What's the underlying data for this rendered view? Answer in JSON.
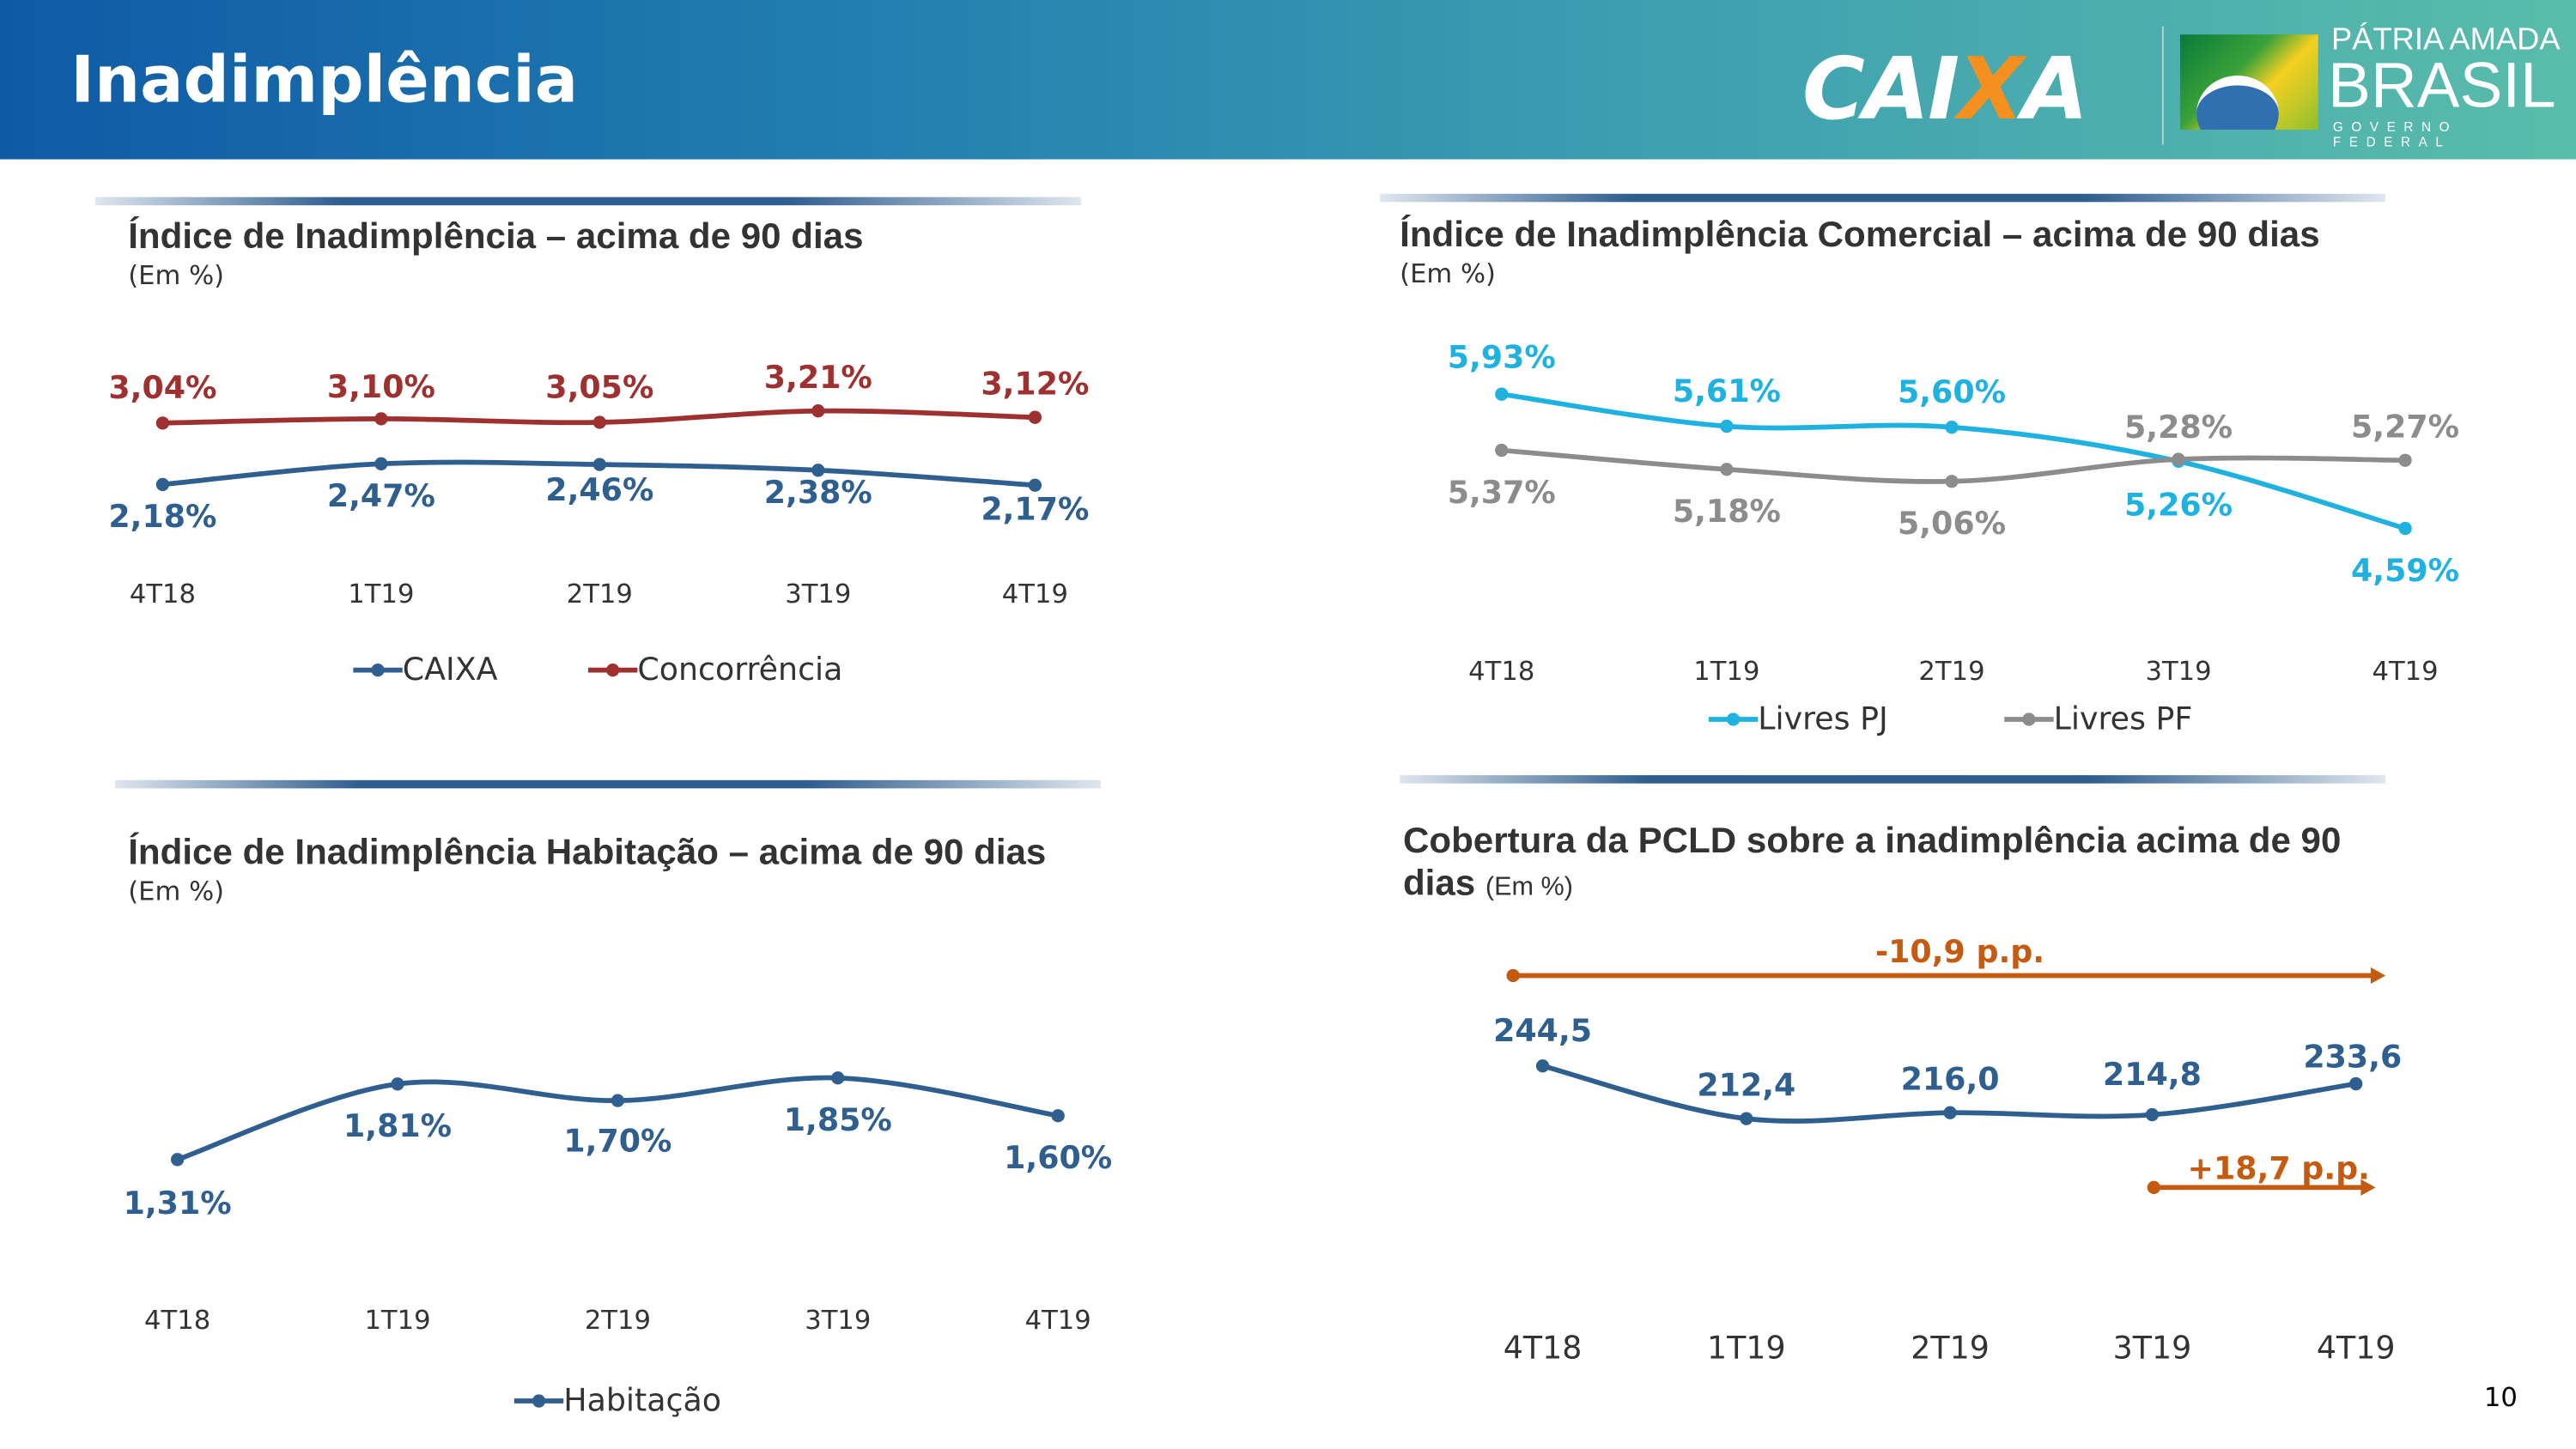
{
  "header": {
    "title": "Inadimplência",
    "logo_caixa": "CAIXA",
    "logo_gov": {
      "line1": "PÁTRIA AMADA",
      "line2": "BRASIL",
      "line3": "GOVERNO FEDERAL"
    }
  },
  "page_number": "10",
  "chart_data": [
    {
      "type": "line",
      "title": "Índice de Inadimplência – acima de 90 dias",
      "subtitle": "(Em %)",
      "categories": [
        "4T18",
        "1T19",
        "2T19",
        "3T19",
        "4T19"
      ],
      "legend": "bottom",
      "series": [
        {
          "name": "CAIXA",
          "color": "#2f5f8f",
          "values": [
            2.18,
            2.47,
            2.46,
            2.38,
            2.17
          ],
          "labels": [
            "2,18%",
            "2,47%",
            "2,46%",
            "2,38%",
            "2,17%"
          ]
        },
        {
          "name": "Concorrência",
          "color": "#9e3030",
          "values": [
            3.04,
            3.1,
            3.05,
            3.21,
            3.12
          ],
          "labels": [
            "3,04%",
            "3,10%",
            "3,05%",
            "3,21%",
            "3,12%"
          ]
        }
      ]
    },
    {
      "type": "line",
      "title": "Índice de Inadimplência Comercial – acima de 90 dias",
      "subtitle": "(Em %)",
      "categories": [
        "4T18",
        "1T19",
        "2T19",
        "3T19",
        "4T19"
      ],
      "legend": "bottom",
      "series": [
        {
          "name": "Livres PJ",
          "color": "#1fb2e0",
          "values": [
            5.93,
            5.61,
            5.6,
            5.26,
            4.59
          ],
          "labels": [
            "5,93%",
            "5,61%",
            "5,60%",
            "5,26%",
            "4,59%"
          ]
        },
        {
          "name": "Livres PF",
          "color": "#8c8c8c",
          "values": [
            5.37,
            5.18,
            5.06,
            5.28,
            5.27
          ],
          "labels": [
            "5,37%",
            "5,18%",
            "5,06%",
            "5,28%",
            "5,27%"
          ]
        }
      ]
    },
    {
      "type": "line",
      "title": "Índice de Inadimplência Habitação – acima de 90 dias",
      "subtitle": "(Em %)",
      "categories": [
        "4T18",
        "1T19",
        "2T19",
        "3T19",
        "4T19"
      ],
      "legend": "bottom",
      "series": [
        {
          "name": "Habitação",
          "color": "#2f5f8f",
          "values": [
            1.31,
            1.81,
            1.7,
            1.85,
            1.6
          ],
          "labels": [
            "1,31%",
            "1,81%",
            "1,70%",
            "1,85%",
            "1,60%"
          ]
        }
      ]
    },
    {
      "type": "line",
      "title": "Cobertura da PCLD sobre a inadimplência acima de 90 dias",
      "subtitle": "(Em %)",
      "categories": [
        "4T18",
        "1T19",
        "2T19",
        "3T19",
        "4T19"
      ],
      "series": [
        {
          "name": "",
          "color": "#2f5f8f",
          "values": [
            244.5,
            212.4,
            216.0,
            214.8,
            233.6
          ],
          "labels": [
            "244,5",
            "212,4",
            "216,0",
            "214,8",
            "233,6"
          ]
        }
      ],
      "annotations": [
        {
          "text": "-10,9 p.p.",
          "from": "4T18",
          "to": "4T19",
          "color": "#c55a11"
        },
        {
          "text": "+18,7 p.p.",
          "from": "3T19",
          "to": "4T19",
          "color": "#c55a11"
        }
      ]
    }
  ]
}
